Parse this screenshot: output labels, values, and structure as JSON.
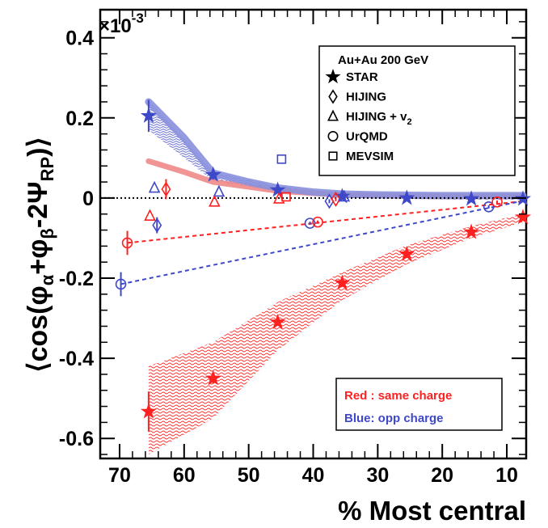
{
  "chart_data": {
    "type": "scatter",
    "multiplier": "×10",
    "multiplier_exp": "-3",
    "ylabel": {
      "open": "⟨cos(φ",
      "sub_a": "α",
      "mid": "+φ",
      "sub_b": "β",
      "mid2": "-2Ψ",
      "sub_rp": "RP",
      "close": ")⟩"
    },
    "xlabel": "% Most central",
    "xlim": [
      73,
      7
    ],
    "ylim": [
      -0.65,
      0.47
    ],
    "x_ticks": [
      70,
      60,
      50,
      40,
      30,
      20,
      10
    ],
    "x_tick_labels": [
      "70",
      "60",
      "50",
      "40",
      "30",
      "20",
      "10"
    ],
    "y_ticks": [
      -0.6,
      -0.4,
      -0.2,
      0,
      0.2,
      0.4
    ],
    "y_tick_labels": [
      "-0.6",
      "-0.4",
      "-0.2",
      "0",
      "0.2",
      "0.4"
    ],
    "zero_line": true,
    "legend": {
      "title": "Au+Au 200 GeV",
      "placement": "top-right",
      "entries": [
        {
          "marker": "star",
          "label": "STAR"
        },
        {
          "marker": "diamond",
          "label": "HIJING"
        },
        {
          "marker": "triangle",
          "label": "HIJING + v",
          "sub": "2"
        },
        {
          "marker": "circle",
          "label": "UrQMD"
        },
        {
          "marker": "square",
          "label": "MEVSIM"
        }
      ]
    },
    "charge_box": {
      "red_label": "Red : same charge",
      "blue_label": "Blue:  opp charge"
    },
    "colors": {
      "same": "#ff2020",
      "opp": "#3f48c8",
      "same_band": "#f08888",
      "opp_band": "#8890dd"
    },
    "series": [
      {
        "model": "STAR",
        "charge": "opp",
        "marker": "star",
        "x": [
          65.5,
          55.5,
          45.5,
          35.5,
          25.5,
          15.5,
          7.5
        ],
        "y": [
          0.205,
          0.058,
          0.02,
          0.004,
          0.0,
          -0.002,
          -0.002
        ],
        "err": [
          0.04,
          0.012,
          0.006,
          0.004,
          0.003,
          0.003,
          0.003
        ]
      },
      {
        "model": "STAR",
        "charge": "same",
        "marker": "star",
        "x": [
          65.5,
          55.5,
          45.5,
          35.5,
          25.5,
          15.5,
          7.5
        ],
        "y": [
          -0.533,
          -0.45,
          -0.31,
          -0.212,
          -0.14,
          -0.085,
          -0.048
        ],
        "err": [
          0.05,
          0.013,
          0.008,
          0.005,
          0.004,
          0.003,
          0.003
        ]
      },
      {
        "model": "HIJING",
        "charge": "opp",
        "marker": "diamond",
        "x": [
          64.2,
          37.5
        ],
        "y": [
          -0.068,
          -0.008
        ],
        "err": [
          0.02,
          0.005
        ]
      },
      {
        "model": "HIJING",
        "charge": "same",
        "marker": "diamond",
        "x": [
          62.8,
          36.5
        ],
        "y": [
          0.022,
          -0.003
        ],
        "err": [
          0.025,
          0.005
        ]
      },
      {
        "model": "HIJING + v2",
        "charge": "opp",
        "marker": "triangle",
        "x": [
          64.6,
          54.6,
          35.2
        ],
        "y": [
          0.025,
          0.015,
          0.003
        ],
        "err": [
          0,
          0,
          0
        ]
      },
      {
        "model": "HIJING + v2",
        "charge": "same",
        "marker": "triangle",
        "x": [
          65.3,
          55.3,
          45.3
        ],
        "y": [
          -0.045,
          -0.01,
          -0.002
        ],
        "err": [
          0,
          0,
          0
        ]
      },
      {
        "model": "UrQMD",
        "charge": "opp",
        "marker": "circle",
        "x": [
          69.8,
          40.5,
          12.8
        ],
        "y": [
          -0.215,
          -0.063,
          -0.022
        ],
        "err": [
          0.03,
          0.004,
          0.004
        ]
      },
      {
        "model": "UrQMD",
        "charge": "same",
        "marker": "circle",
        "x": [
          68.8,
          39.3,
          11.5
        ],
        "y": [
          -0.112,
          -0.06,
          -0.01
        ],
        "err": [
          0.03,
          0.004,
          0.004
        ]
      },
      {
        "model": "MEVSIM",
        "charge": "opp",
        "marker": "square",
        "x": [
          44.9
        ],
        "y": [
          0.097
        ],
        "err": [
          0
        ]
      },
      {
        "model": "MEVSIM",
        "charge": "same",
        "marker": "square",
        "x": [
          44.2
        ],
        "y": [
          0.003
        ],
        "err": [
          0
        ]
      }
    ],
    "dashed_lines": [
      {
        "charge": "same",
        "x": [
          68.8,
          7.5
        ],
        "y": [
          -0.112,
          -0.008
        ]
      },
      {
        "charge": "opp",
        "x": [
          69.8,
          7.5
        ],
        "y": [
          -0.215,
          -0.007
        ]
      }
    ],
    "bands": [
      {
        "charge": "same",
        "x": [
          65.5,
          55.5,
          45.5,
          35.5,
          25.5,
          15.5,
          7.5
        ],
        "y_low": [
          -0.64,
          -0.55,
          -0.38,
          -0.255,
          -0.165,
          -0.1,
          -0.06
        ],
        "y_high": [
          -0.42,
          -0.36,
          -0.26,
          -0.185,
          -0.118,
          -0.07,
          -0.04
        ]
      },
      {
        "charge": "opp",
        "x": [
          65.5,
          55.5,
          45.5,
          35.5,
          25.5,
          15.5,
          7.5
        ],
        "y_low": [
          0.17,
          0.043,
          0.016,
          0.0,
          -0.003,
          -0.004,
          -0.004
        ],
        "y_high": [
          0.245,
          0.065,
          0.03,
          0.01,
          0.006,
          0.006,
          0.006
        ]
      }
    ],
    "thick_curves": [
      {
        "charge": "same",
        "x": [
          65.5,
          60,
          55.5,
          50,
          45.5,
          40,
          35.5,
          30,
          25.5,
          20,
          15.5,
          10,
          7.5
        ],
        "y": [
          0.092,
          0.065,
          0.04,
          0.028,
          0.018,
          0.012,
          0.008,
          0.006,
          0.005,
          0.004,
          0.004,
          0.004,
          0.004
        ]
      },
      {
        "charge": "opp",
        "x": [
          65.5,
          60,
          55.5,
          50,
          45.5,
          40,
          35.5,
          30,
          25.5,
          20,
          15.5,
          10,
          7.5
        ],
        "y": [
          0.24,
          0.15,
          0.062,
          0.04,
          0.025,
          0.015,
          0.01,
          0.008,
          0.007,
          0.006,
          0.006,
          0.006,
          0.006
        ]
      }
    ]
  }
}
